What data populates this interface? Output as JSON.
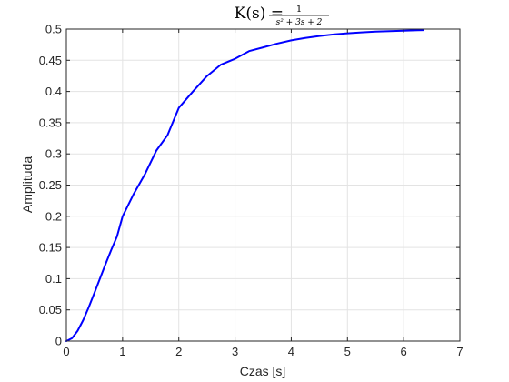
{
  "chart_data": {
    "type": "line",
    "title": {
      "lhs": "K(s) =",
      "numerator": "1",
      "denominator": "s² + 3s + 2"
    },
    "xlabel": "Czas [s]",
    "ylabel": "Amplituda",
    "xlim": [
      0,
      7
    ],
    "ylim": [
      0,
      0.5
    ],
    "grid": true,
    "xticks": [
      0,
      1,
      2,
      3,
      4,
      5,
      6,
      7
    ],
    "xtick_labels": [
      "0",
      "1",
      "2",
      "3",
      "4",
      "5",
      "6",
      "7"
    ],
    "yticks": [
      0,
      0.05,
      0.1,
      0.15,
      0.2,
      0.25,
      0.3,
      0.35,
      0.4,
      0.45,
      0.5
    ],
    "ytick_labels": [
      "0",
      "0.05",
      "0.1",
      "0.15",
      "0.2",
      "0.25",
      "0.3",
      "0.35",
      "0.4",
      "0.45",
      "0.5"
    ],
    "series": [
      {
        "color": "#0000ff",
        "x": [
          0,
          0.1,
          0.2,
          0.3,
          0.4,
          0.5,
          0.6,
          0.7,
          0.8,
          0.9,
          1.0,
          1.2,
          1.4,
          1.6,
          1.8,
          2.0,
          2.25,
          2.5,
          2.75,
          3.0,
          3.25,
          3.5,
          3.75,
          4.0,
          4.25,
          4.5,
          4.75,
          5.0,
          5.25,
          5.5,
          5.75,
          6.0,
          6.25,
          6.35
        ],
        "y": [
          0,
          0.0045,
          0.0164,
          0.0337,
          0.0547,
          0.0774,
          0.1008,
          0.1241,
          0.1465,
          0.1675,
          0.1998,
          0.2362,
          0.2679,
          0.3052,
          0.3301,
          0.3738,
          0.3999,
          0.4246,
          0.4431,
          0.4524,
          0.4647,
          0.4707,
          0.4768,
          0.482,
          0.4858,
          0.4889,
          0.4914,
          0.4933,
          0.4948,
          0.4959,
          0.4968,
          0.4975,
          0.4981,
          0.4983
        ]
      }
    ]
  }
}
